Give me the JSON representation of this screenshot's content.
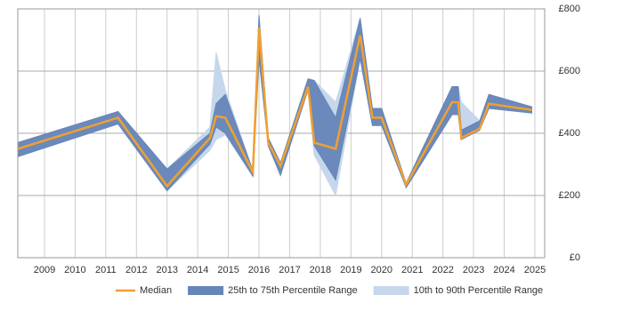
{
  "chart_data": {
    "type": "line-band",
    "x": [
      2008.13,
      2011.4,
      2013.0,
      2014.4,
      2014.6,
      2014.9,
      2015.8,
      2016.0,
      2016.3,
      2016.7,
      2017.6,
      2017.8,
      2018.5,
      2019.3,
      2019.7,
      2020.0,
      2020.8,
      2022.3,
      2022.5,
      2022.6,
      2023.2,
      2023.5,
      2024.9
    ],
    "series": [
      {
        "name": "10th to 90th Percentile Range",
        "color": "#c6d7ec",
        "low": [
          325,
          430,
          215,
          345,
          380,
          395,
          262,
          640,
          360,
          265,
          540,
          330,
          200,
          640,
          425,
          425,
          225,
          460,
          460,
          380,
          410,
          480,
          465
        ],
        "high": [
          370,
          470,
          285,
          420,
          660,
          540,
          280,
          780,
          385,
          305,
          575,
          570,
          500,
          770,
          480,
          480,
          240,
          550,
          550,
          500,
          440,
          525,
          485
        ]
      },
      {
        "name": "25th to 75th Percentile Range",
        "color": "#6685b8",
        "low": [
          325,
          430,
          215,
          365,
          420,
          400,
          262,
          640,
          360,
          265,
          540,
          360,
          250,
          640,
          425,
          425,
          225,
          460,
          460,
          380,
          410,
          480,
          465
        ],
        "high": [
          370,
          470,
          285,
          400,
          495,
          525,
          280,
          780,
          385,
          305,
          575,
          570,
          450,
          770,
          480,
          480,
          240,
          550,
          550,
          410,
          440,
          525,
          485
        ]
      },
      {
        "name": "Median",
        "color": "#f0a030",
        "values": [
          350,
          450,
          230,
          385,
          455,
          450,
          275,
          740,
          370,
          295,
          550,
          370,
          350,
          715,
          450,
          450,
          235,
          500,
          500,
          385,
          415,
          495,
          475
        ]
      }
    ],
    "xlim": [
      2008.13,
      2025.32
    ],
    "xticks": [
      2009,
      2010,
      2011,
      2012,
      2013,
      2014,
      2015,
      2016,
      2017,
      2018,
      2019,
      2020,
      2021,
      2022,
      2023,
      2024,
      2025
    ],
    "ylim": [
      0,
      800
    ],
    "yticks": [
      {
        "value": 0,
        "label": "£0"
      },
      {
        "value": 200,
        "label": "£200"
      },
      {
        "value": 400,
        "label": "£400"
      },
      {
        "value": 600,
        "label": "£600"
      },
      {
        "value": 800,
        "label": "£800"
      }
    ],
    "grid": true
  }
}
